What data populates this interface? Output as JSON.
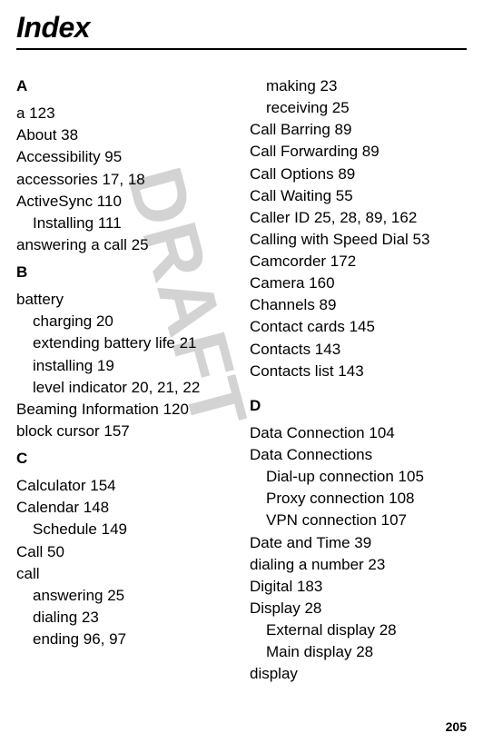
{
  "title": "Index",
  "watermark": "DRAFT",
  "page_number": "205",
  "colors": {
    "text": "#000000",
    "background": "#ffffff",
    "watermark": "#d3d3d3"
  },
  "left_column": {
    "sections": [
      {
        "letter": "A",
        "entries": [
          {
            "text": "a  123",
            "sub": false
          },
          {
            "text": "About  38",
            "sub": false
          },
          {
            "text": "Accessibility  95",
            "sub": false
          },
          {
            "text": "accessories  17, 18",
            "sub": false
          },
          {
            "text": "ActiveSync  110",
            "sub": false
          },
          {
            "text": "Installing  111",
            "sub": true
          },
          {
            "text": "answering a call  25",
            "sub": false
          }
        ]
      },
      {
        "letter": "B",
        "entries": [
          {
            "text": "battery",
            "sub": false
          },
          {
            "text": "charging  20",
            "sub": true
          },
          {
            "text": "extending battery life  21",
            "sub": true
          },
          {
            "text": "installing  19",
            "sub": true
          },
          {
            "text": "level indicator  20, 21, 22",
            "sub": true
          },
          {
            "text": "Beaming Information  120",
            "sub": false
          },
          {
            "text": "block cursor  157",
            "sub": false
          }
        ]
      },
      {
        "letter": "C",
        "entries": [
          {
            "text": "Calculator  154",
            "sub": false
          },
          {
            "text": "Calendar  148",
            "sub": false
          },
          {
            "text": "Schedule  149",
            "sub": true
          },
          {
            "text": "Call  50",
            "sub": false
          },
          {
            "text": "call",
            "sub": false
          },
          {
            "text": "answering  25",
            "sub": true
          },
          {
            "text": "dialing  23",
            "sub": true
          },
          {
            "text": "ending  96, 97",
            "sub": true
          }
        ]
      }
    ]
  },
  "right_column": {
    "continuation": [
      {
        "text": "making  23",
        "sub": true
      },
      {
        "text": "receiving  25",
        "sub": true
      },
      {
        "text": "Call Barring  89",
        "sub": false
      },
      {
        "text": "Call Forwarding  89",
        "sub": false
      },
      {
        "text": "Call Options  89",
        "sub": false
      },
      {
        "text": "Call Waiting  55",
        "sub": false
      },
      {
        "text": "Caller ID  25, 28, 89, 162",
        "sub": false
      },
      {
        "text": "Calling with Speed Dial  53",
        "sub": false
      },
      {
        "text": "Camcorder  172",
        "sub": false
      },
      {
        "text": "Camera  160",
        "sub": false
      },
      {
        "text": "Channels  89",
        "sub": false
      },
      {
        "text": "Contact cards  145",
        "sub": false
      },
      {
        "text": "Contacts  143",
        "sub": false
      },
      {
        "text": "Contacts list  143",
        "sub": false
      }
    ],
    "sections": [
      {
        "letter": "D",
        "entries": [
          {
            "text": "Data Connection  104",
            "sub": false
          },
          {
            "text": "Data Connections",
            "sub": false
          },
          {
            "text": "Dial-up connection  105",
            "sub": true
          },
          {
            "text": "Proxy connection  108",
            "sub": true
          },
          {
            "text": "VPN connection  107",
            "sub": true
          },
          {
            "text": "Date and Time  39",
            "sub": false
          },
          {
            "text": "dialing a number  23",
            "sub": false
          },
          {
            "text": "Digital  183",
            "sub": false
          },
          {
            "text": "Display  28",
            "sub": false
          },
          {
            "text": "External display  28",
            "sub": true
          },
          {
            "text": "Main display  28",
            "sub": true
          },
          {
            "text": "display",
            "sub": false
          }
        ]
      }
    ]
  }
}
